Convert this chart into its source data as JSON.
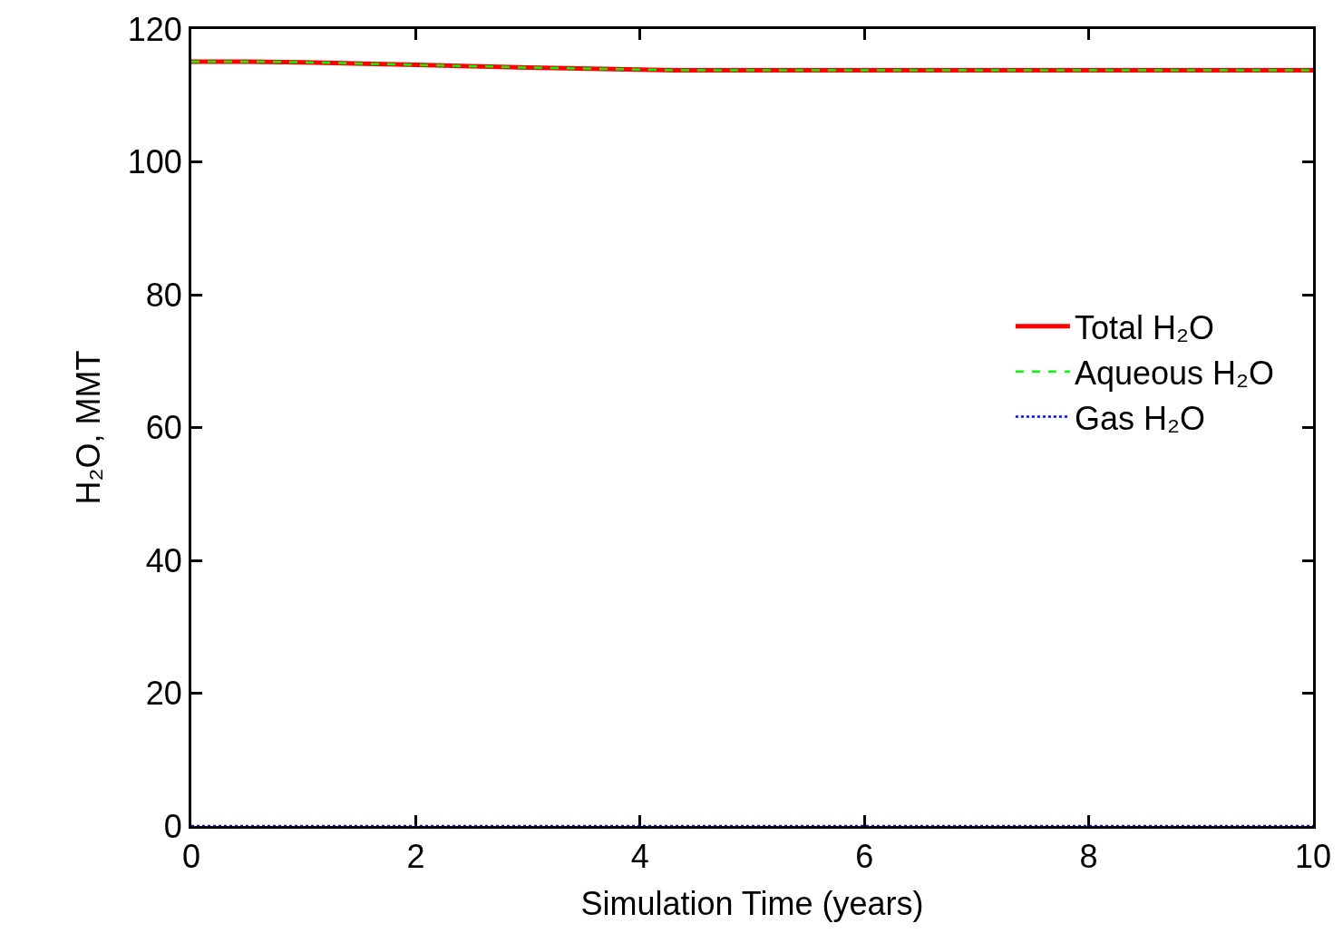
{
  "chart_data": {
    "type": "line",
    "xlabel": "Simulation Time (years)",
    "ylabel": "H₂O, MMT",
    "x": [
      0,
      0.5,
      1,
      2,
      3,
      4,
      4.3,
      5,
      6,
      7,
      8,
      9,
      10
    ],
    "xlim": [
      0,
      10
    ],
    "xticks": [
      0,
      2,
      4,
      6,
      8,
      10
    ],
    "ylim": [
      0,
      120
    ],
    "yticks": [
      0,
      20,
      40,
      60,
      80,
      100,
      120
    ],
    "grid": false,
    "legend": "right",
    "marker": "none",
    "series": [
      {
        "name": "Total H₂O",
        "color": "#ff0000",
        "line_style": "solid",
        "values": [
          115.1,
          115.1,
          115.0,
          114.6,
          114.2,
          113.9,
          113.8,
          113.8,
          113.8,
          113.8,
          113.8,
          113.8,
          113.8
        ]
      },
      {
        "name": "Aqueous H₂O",
        "color": "#00ff00",
        "line_style": "dashed",
        "values": [
          115.1,
          115.1,
          115.0,
          114.6,
          114.2,
          113.9,
          113.8,
          113.8,
          113.8,
          113.8,
          113.8,
          113.8,
          113.8
        ]
      },
      {
        "name": "Gas H₂O",
        "color": "#0000ff",
        "line_style": "dotted",
        "values": [
          0,
          0,
          0,
          0,
          0,
          0,
          0,
          0,
          0,
          0,
          0,
          0,
          0
        ]
      }
    ]
  }
}
